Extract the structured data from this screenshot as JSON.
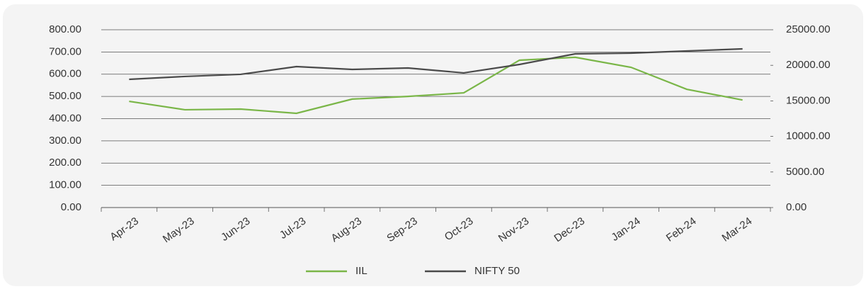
{
  "chart_data": {
    "type": "line",
    "categories": [
      "Apr-23",
      "May-23",
      "Jun-23",
      "Jul-23",
      "Aug-23",
      "Sep-23",
      "Oct-23",
      "Nov-23",
      "Dec-23",
      "Jan-24",
      "Feb-24",
      "Mar-24"
    ],
    "series": [
      {
        "name": "IIL",
        "color": "#7ab648",
        "values": [
          478,
          440,
          443,
          424,
          488,
          500,
          516,
          663,
          676,
          631,
          532,
          484
        ]
      },
      {
        "name": "NIFTY 50",
        "color": "#4a4a4a",
        "axis": "y2",
        "values": [
          18030,
          18430,
          18730,
          19820,
          19420,
          19620,
          18930,
          20120,
          21610,
          21710,
          22010,
          22310
        ]
      }
    ],
    "ylim": [
      0,
      800
    ],
    "yticks": [
      {
        "value": 0,
        "label": "0.00"
      },
      {
        "value": 100,
        "label": "100.00"
      },
      {
        "value": 200,
        "label": "200.00"
      },
      {
        "value": 300,
        "label": "300.00"
      },
      {
        "value": 400,
        "label": "400.00"
      },
      {
        "value": 500,
        "label": "500.00"
      },
      {
        "value": 600,
        "label": "600.00"
      },
      {
        "value": 700,
        "label": "700.00"
      },
      {
        "value": 800,
        "label": "800.00"
      }
    ],
    "y2lim": [
      0,
      25000
    ],
    "y2ticks": [
      {
        "value": 0,
        "label": "0.00"
      },
      {
        "value": 5000,
        "label": "5000.00"
      },
      {
        "value": 10000,
        "label": "10000.00"
      },
      {
        "value": 15000,
        "label": "15000.00"
      },
      {
        "value": 20000,
        "label": "20000.00"
      },
      {
        "value": 25000,
        "label": "25000.00"
      }
    ],
    "grid": true,
    "legend": "bottom"
  }
}
